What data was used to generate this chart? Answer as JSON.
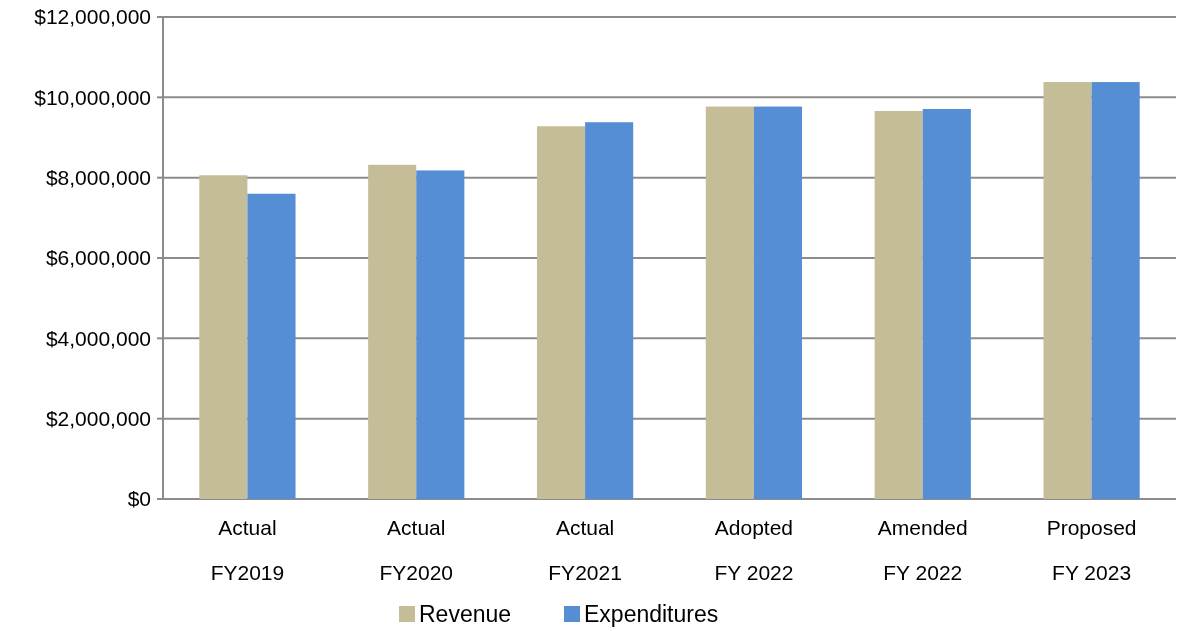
{
  "chart_data": {
    "type": "bar",
    "categories": [
      "Actual\nFY2019",
      "Actual\nFY2020",
      "Actual\nFY2021",
      "Adopted\nFY 2022",
      "Amended\nFY 2022",
      "Proposed\nFY 2023"
    ],
    "series": [
      {
        "name": "Revenue",
        "color": "#c4bd97",
        "values": [
          8060000,
          8320000,
          9280000,
          9770000,
          9660000,
          10380000
        ]
      },
      {
        "name": "Expenditures",
        "color": "#558ed5",
        "values": [
          7600000,
          8180000,
          9380000,
          9770000,
          9710000,
          10380000
        ]
      }
    ],
    "ylim": [
      0,
      12000000
    ],
    "yticks": [
      {
        "value": 0,
        "label": "$0"
      },
      {
        "value": 2000000,
        "label": "$2,000,000"
      },
      {
        "value": 4000000,
        "label": "$4,000,000"
      },
      {
        "value": 6000000,
        "label": "$6,000,000"
      },
      {
        "value": 8000000,
        "label": "$8,000,000"
      },
      {
        "value": 10000000,
        "label": "$10,000,000"
      },
      {
        "value": 12000000,
        "label": "$12,000,000"
      }
    ],
    "grid": "y",
    "legend": "bottom"
  }
}
